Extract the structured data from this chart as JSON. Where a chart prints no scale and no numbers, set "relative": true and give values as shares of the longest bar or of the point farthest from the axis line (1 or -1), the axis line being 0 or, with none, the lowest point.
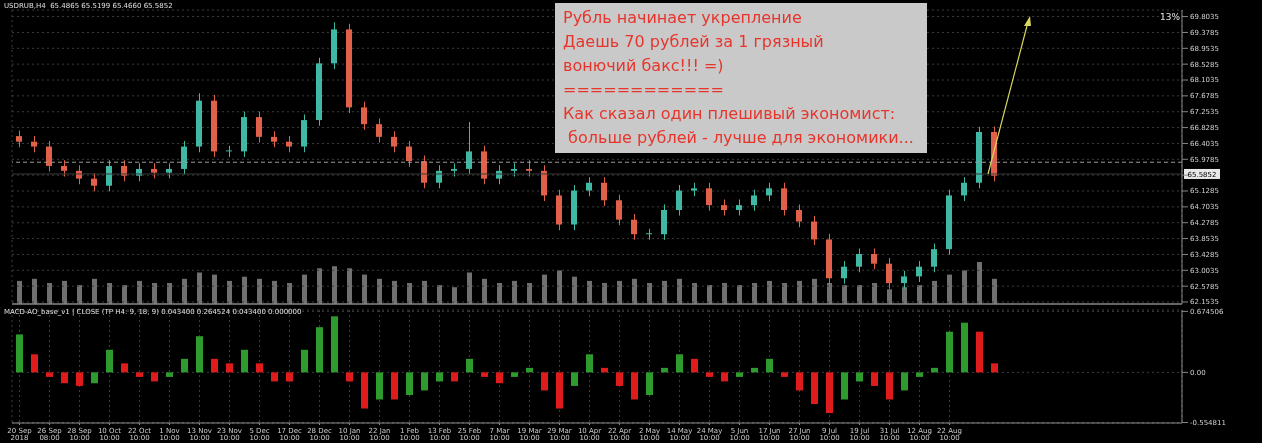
{
  "chart_data": [
    {
      "type": "candlestick",
      "title": "USDRUB,H4  65.4865 65.5199 65.4660 65.5852",
      "subtitle": "13%",
      "categories": [
        null,
        null,
        null,
        null,
        null,
        null,
        null,
        null,
        null,
        null,
        null,
        null,
        null,
        null,
        null,
        null,
        null,
        null,
        null,
        null,
        null,
        null,
        null,
        null,
        null,
        null,
        null,
        null,
        null,
        null,
        null,
        null,
        null,
        null,
        null,
        null,
        null,
        null,
        null,
        null,
        null,
        null,
        null,
        null,
        null,
        null,
        null,
        null,
        null,
        null,
        null,
        null,
        null,
        null,
        null,
        null,
        null,
        null,
        null,
        null,
        null,
        null,
        null,
        null,
        null,
        null,
        null,
        null,
        null,
        null,
        null,
        null,
        null,
        null,
        null,
        null,
        null,
        null
      ],
      "ohlc": [
        [
          66.6,
          66.75,
          66.3,
          66.45
        ],
        [
          66.45,
          66.6,
          66.17,
          66.32
        ],
        [
          66.32,
          66.47,
          65.65,
          65.8
        ],
        [
          65.8,
          65.95,
          65.52,
          65.67
        ],
        [
          65.67,
          65.82,
          65.31,
          65.46
        ],
        [
          65.46,
          65.61,
          65.12,
          65.27
        ],
        [
          65.27,
          65.95,
          65.12,
          65.8
        ],
        [
          65.8,
          65.95,
          65.39,
          65.54
        ],
        [
          65.54,
          65.87,
          65.39,
          65.72
        ],
        [
          65.72,
          65.87,
          65.47,
          65.62
        ],
        [
          65.62,
          65.87,
          65.47,
          65.72
        ],
        [
          65.72,
          66.47,
          65.57,
          66.32
        ],
        [
          66.32,
          67.75,
          66.17,
          67.55
        ],
        [
          67.55,
          67.7,
          66.04,
          66.19
        ],
        [
          66.19,
          66.34,
          66.04,
          66.19
        ],
        [
          66.19,
          67.26,
          66.04,
          67.11
        ],
        [
          67.11,
          67.26,
          66.43,
          66.58
        ],
        [
          66.58,
          66.73,
          66.3,
          66.45
        ],
        [
          66.45,
          66.6,
          66.17,
          66.32
        ],
        [
          66.32,
          67.18,
          66.17,
          67.03
        ],
        [
          67.03,
          68.7,
          66.88,
          68.55
        ],
        [
          68.55,
          69.65,
          68.4,
          69.46
        ],
        [
          69.46,
          69.61,
          67.22,
          67.37
        ],
        [
          67.37,
          67.52,
          66.77,
          66.92
        ],
        [
          66.92,
          67.07,
          66.43,
          66.58
        ],
        [
          66.58,
          66.73,
          66.17,
          66.32
        ],
        [
          66.32,
          66.47,
          65.78,
          65.93
        ],
        [
          65.93,
          66.08,
          65.2,
          65.35
        ],
        [
          65.35,
          65.82,
          65.2,
          65.67
        ],
        [
          65.67,
          65.87,
          65.52,
          65.72
        ],
        [
          65.72,
          66.98,
          65.57,
          66.19
        ],
        [
          66.19,
          66.34,
          65.31,
          65.46
        ],
        [
          65.46,
          65.82,
          65.31,
          65.67
        ],
        [
          65.67,
          65.87,
          65.52,
          65.72
        ],
        [
          65.72,
          65.95,
          65.52,
          65.67
        ],
        [
          65.67,
          65.82,
          64.86,
          65.01
        ],
        [
          65.01,
          65.16,
          64.08,
          64.23
        ],
        [
          64.23,
          65.29,
          64.08,
          65.14
        ],
        [
          65.14,
          65.5,
          64.99,
          65.35
        ],
        [
          65.35,
          65.5,
          64.73,
          64.88
        ],
        [
          64.88,
          65.03,
          64.21,
          64.36
        ],
        [
          64.36,
          64.51,
          63.82,
          63.97
        ],
        [
          63.97,
          64.12,
          63.82,
          63.97
        ],
        [
          63.97,
          64.77,
          63.82,
          64.62
        ],
        [
          64.62,
          65.29,
          64.47,
          65.14
        ],
        [
          65.14,
          65.35,
          64.99,
          65.2
        ],
        [
          65.2,
          65.35,
          64.6,
          64.75
        ],
        [
          64.75,
          64.9,
          64.47,
          64.62
        ],
        [
          64.62,
          64.9,
          64.47,
          64.75
        ],
        [
          64.75,
          65.16,
          64.6,
          65.01
        ],
        [
          65.01,
          65.35,
          64.86,
          65.2
        ],
        [
          65.2,
          65.35,
          64.47,
          64.62
        ],
        [
          64.62,
          64.77,
          64.16,
          64.31
        ],
        [
          64.31,
          64.46,
          63.68,
          63.83
        ],
        [
          63.83,
          63.98,
          62.64,
          62.79
        ],
        [
          62.79,
          63.25,
          62.64,
          63.1
        ],
        [
          63.1,
          63.59,
          62.95,
          63.44
        ],
        [
          63.44,
          63.59,
          63.03,
          63.18
        ],
        [
          63.18,
          63.33,
          62.51,
          62.66
        ],
        [
          62.66,
          62.99,
          62.51,
          62.84
        ],
        [
          62.84,
          63.25,
          62.69,
          63.1
        ],
        [
          63.1,
          63.72,
          62.95,
          63.57
        ],
        [
          63.57,
          65.16,
          63.42,
          65.01
        ],
        [
          65.01,
          65.5,
          64.86,
          65.35
        ],
        [
          65.35,
          66.85,
          65.2,
          66.71
        ],
        [
          66.71,
          66.86,
          65.39,
          65.54
        ],
        null,
        null,
        null,
        null,
        null,
        null,
        null,
        null,
        null,
        null,
        null,
        null
      ],
      "colors": [
        "#e0604a",
        "#e0604a",
        "#e0604a",
        "#e0604a",
        "#e0604a",
        "#e0604a",
        "#3fb8a4",
        "#e0604a",
        "#3fb8a4",
        "#e0604a",
        "#3fb8a4",
        "#3fb8a4",
        "#3fb8a4",
        "#e0604a",
        "#3fb8a4",
        "#3fb8a4",
        "#e0604a",
        "#e0604a",
        "#e0604a",
        "#3fb8a4",
        "#3fb8a4",
        "#3fb8a4",
        "#e0604a",
        "#e0604a",
        "#e0604a",
        "#e0604a",
        "#e0604a",
        "#e0604a",
        "#3fb8a4",
        "#3fb8a4",
        "#3fb8a4",
        "#e0604a",
        "#3fb8a4",
        "#3fb8a4",
        "#e0604a",
        "#e0604a",
        "#e0604a",
        "#3fb8a4",
        "#3fb8a4",
        "#e0604a",
        "#e0604a",
        "#e0604a",
        "#3fb8a4",
        "#3fb8a4",
        "#3fb8a4",
        "#3fb8a4",
        "#e0604a",
        "#e0604a",
        "#3fb8a4",
        "#3fb8a4",
        "#3fb8a4",
        "#e0604a",
        "#e0604a",
        "#e0604a",
        "#e0604a",
        "#3fb8a4",
        "#3fb8a4",
        "#e0604a",
        "#e0604a",
        "#3fb8a4",
        "#3fb8a4",
        "#3fb8a4",
        "#3fb8a4",
        "#3fb8a4",
        "#3fb8a4",
        "#e0604a",
        null,
        null,
        null,
        null,
        null,
        null,
        null,
        null,
        null,
        null,
        null,
        null
      ],
      "ylim": [
        62.1,
        69.98
      ],
      "yticks": [
        62.1535,
        62.5785,
        63.0035,
        63.4285,
        63.8535,
        64.2785,
        64.7035,
        65.1285,
        {
          "value": 65.5535,
          "label": null
        },
        65.9785,
        66.4035,
        66.8285,
        67.2535,
        67.6785,
        68.1035,
        68.5285,
        68.9535,
        69.3785,
        69.8035
      ],
      "grid": true,
      "tick_labels": "y",
      "ref_lines": [
        {
          "axis": "y",
          "value": 65.9,
          "label": null,
          "color": "#9a9a9a",
          "line_style": "dashed"
        },
        {
          "axis": "y",
          "value": 65.5852,
          "label": "65.5852",
          "color": "#3a3a3a",
          "line_style": "solid"
        }
      ],
      "annotations": [
        "Рубль начинает укрепление",
        "Даешь 70 рублей за 1 грязный",
        "вонючий бакс!!! =)",
        "============",
        "Как сказал один плешивый экономист:",
        " больше рублей - лучше для экономики..."
      ]
    },
    {
      "type": "bar",
      "relative": true,
      "color": "#707070",
      "tick_labels": false,
      "categories": [
        null,
        null,
        null,
        null,
        null,
        null,
        null,
        null,
        null,
        null,
        null,
        null,
        null,
        null,
        null,
        null,
        null,
        null,
        null,
        null,
        null,
        null,
        null,
        null,
        null,
        null,
        null,
        null,
        null,
        null,
        null,
        null,
        null,
        null,
        null,
        null,
        null,
        null,
        null,
        null,
        null,
        null,
        null,
        null,
        null,
        null,
        null,
        null,
        null,
        null,
        null,
        null,
        null,
        null,
        null,
        null,
        null,
        null,
        null,
        null,
        null,
        null,
        null,
        null,
        null,
        null,
        null,
        null,
        null,
        null,
        null,
        null,
        null,
        null,
        null,
        null,
        null,
        null
      ],
      "values": [
        0.55,
        0.6,
        0.5,
        0.55,
        0.45,
        0.6,
        0.5,
        0.45,
        0.55,
        0.5,
        0.5,
        0.6,
        0.75,
        0.7,
        0.55,
        0.65,
        0.6,
        0.55,
        0.5,
        0.7,
        0.85,
        0.9,
        0.85,
        0.7,
        0.6,
        0.55,
        0.5,
        0.55,
        0.45,
        0.4,
        0.75,
        0.6,
        0.5,
        0.55,
        0.5,
        0.7,
        0.8,
        0.65,
        0.55,
        0.5,
        0.55,
        0.6,
        0.5,
        0.55,
        0.6,
        0.5,
        0.45,
        0.5,
        0.45,
        0.5,
        0.55,
        0.5,
        0.55,
        0.6,
        0.5,
        0.45,
        0.45,
        0.5,
        0.35,
        0.4,
        0.45,
        0.55,
        0.7,
        0.8,
        1,
        0.6,
        null,
        null,
        null,
        null,
        null,
        null,
        null,
        null,
        null,
        null,
        null,
        null
      ]
    },
    {
      "type": "bar",
      "title": "MACD-AO_base_v1 | CLOSE (TP H4: 9, 18, 9) 0.043400 0.264524 0.043400 0.000000",
      "categories": [
        "20 Sep 2018",
        null,
        "26 Sep 08:00",
        null,
        "28 Sep 10:00",
        null,
        "10 Oct 10:00",
        null,
        "22 Oct 10:00",
        null,
        "1 Nov 10:00",
        null,
        "13 Nov 10:00",
        null,
        "23 Nov 10:00",
        null,
        "5 Dec 10:00",
        null,
        "17 Dec 10:00",
        null,
        "28 Dec 10:00",
        null,
        "10 Jan 10:00",
        null,
        "22 Jan 10:00",
        null,
        "1 Feb 10:00",
        null,
        "13 Feb 10:00",
        null,
        "25 Feb 10:00",
        null,
        "7 Mar 10:00",
        null,
        "19 Mar 10:00",
        null,
        "29 Mar 10:00",
        null,
        "10 Apr 10:00",
        null,
        "22 Apr 10:00",
        null,
        "2 May 10:00",
        null,
        "14 May 10:00",
        null,
        "24 May 10:00",
        null,
        "5 Jun 10:00",
        null,
        "17 Jun 10:00",
        null,
        "27 Jun 10:00",
        null,
        "9 Jul 10:00",
        null,
        "19 Jul 10:00",
        null,
        "31 Jul 10:00",
        null,
        "12 Aug 10:00",
        null,
        "22 Aug 10:00",
        null,
        null,
        null,
        null,
        null,
        null,
        null,
        null,
        null,
        null,
        null,
        null,
        null,
        null,
        null
      ],
      "values": [
        0.42,
        0.2,
        -0.05,
        -0.12,
        -0.15,
        -0.12,
        0.25,
        0.1,
        -0.05,
        -0.1,
        -0.05,
        0.15,
        0.4,
        0.15,
        0.1,
        0.25,
        0.1,
        -0.1,
        -0.1,
        0.25,
        0.5,
        0.62,
        -0.1,
        -0.4,
        -0.3,
        -0.3,
        -0.25,
        -0.2,
        -0.1,
        -0.1,
        0.15,
        -0.05,
        -0.12,
        -0.05,
        0.05,
        -0.2,
        -0.4,
        -0.15,
        0.2,
        0.05,
        -0.15,
        -0.3,
        -0.25,
        0.05,
        0.2,
        0.15,
        -0.05,
        -0.1,
        -0.05,
        0.05,
        0.15,
        -0.05,
        -0.2,
        -0.35,
        -0.45,
        -0.3,
        -0.1,
        -0.15,
        -0.3,
        -0.2,
        -0.05,
        0.05,
        0.45,
        0.55,
        0.45,
        0.1,
        null,
        null,
        null,
        null,
        null,
        null,
        null,
        null,
        null,
        null,
        null,
        null
      ],
      "colors": [
        "#2e9b2e",
        "#e01b1b",
        "#e01b1b",
        "#e01b1b",
        "#e01b1b",
        "#2e9b2e",
        "#2e9b2e",
        "#e01b1b",
        "#e01b1b",
        "#e01b1b",
        "#2e9b2e",
        "#2e9b2e",
        "#2e9b2e",
        "#e01b1b",
        "#e01b1b",
        "#2e9b2e",
        "#e01b1b",
        "#e01b1b",
        "#e01b1b",
        "#2e9b2e",
        "#2e9b2e",
        "#2e9b2e",
        "#e01b1b",
        "#e01b1b",
        "#2e9b2e",
        "#e01b1b",
        "#2e9b2e",
        "#2e9b2e",
        "#2e9b2e",
        "#e01b1b",
        "#2e9b2e",
        "#e01b1b",
        "#e01b1b",
        "#2e9b2e",
        "#2e9b2e",
        "#e01b1b",
        "#e01b1b",
        "#2e9b2e",
        "#2e9b2e",
        "#e01b1b",
        "#e01b1b",
        "#e01b1b",
        "#2e9b2e",
        "#2e9b2e",
        "#2e9b2e",
        "#e01b1b",
        "#e01b1b",
        "#e01b1b",
        "#2e9b2e",
        "#2e9b2e",
        "#2e9b2e",
        "#e01b1b",
        "#e01b1b",
        "#e01b1b",
        "#e01b1b",
        "#2e9b2e",
        "#2e9b2e",
        "#e01b1b",
        "#e01b1b",
        "#2e9b2e",
        "#2e9b2e",
        "#2e9b2e",
        "#2e9b2e",
        "#2e9b2e",
        "#e01b1b",
        "#e01b1b",
        null,
        null,
        null,
        null,
        null,
        null,
        null,
        null,
        null,
        null,
        null,
        null
      ],
      "ylim": [
        -0.56,
        0.69
      ],
      "yticks": [
        -0.554811,
        {
          "value": 0,
          "label": "0.00"
        },
        0.674506
      ],
      "grid": true
    }
  ]
}
